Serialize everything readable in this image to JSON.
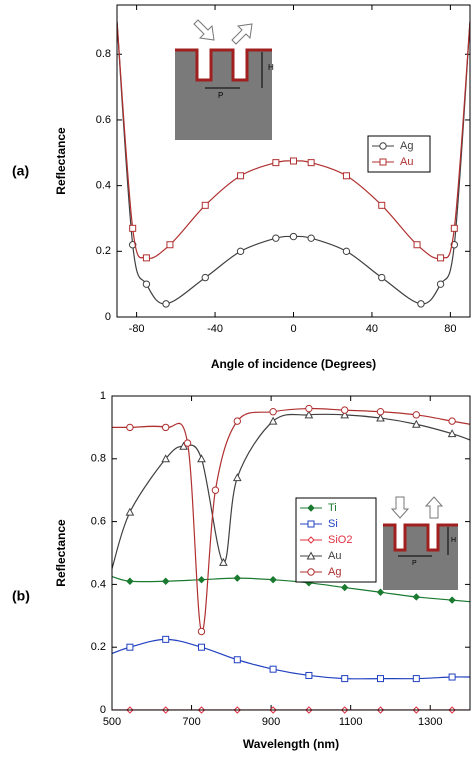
{
  "chart_data": [
    {
      "type": "line",
      "panel_label": "(a)",
      "x_label": "Angle of incidence (Degrees)",
      "y_label": "Reflectance",
      "xlim": [
        -90,
        90
      ],
      "xticks": [
        -80,
        -40,
        0,
        40,
        80
      ],
      "ylim": [
        0,
        0.95
      ],
      "yticks": [
        0,
        0.2,
        0.4,
        0.6,
        0.8
      ],
      "inset_labels": [
        "H",
        "P"
      ],
      "series": [
        {
          "name": "Ag",
          "color": "#404040",
          "marker": "circle",
          "x": [
            -90,
            -82,
            -75,
            -65,
            -45,
            -27,
            -9,
            0,
            9,
            27,
            45,
            65,
            75,
            82,
            90
          ],
          "values": [
            0.9,
            0.22,
            0.1,
            0.04,
            0.12,
            0.2,
            0.24,
            0.245,
            0.24,
            0.2,
            0.12,
            0.04,
            0.1,
            0.22,
            0.9
          ]
        },
        {
          "name": "Au",
          "color": "#b03030",
          "marker": "square",
          "x": [
            -90,
            -82,
            -75,
            -63,
            -45,
            -27,
            -9,
            0,
            9,
            27,
            45,
            63,
            75,
            82,
            90
          ],
          "values": [
            0.9,
            0.27,
            0.18,
            0.22,
            0.34,
            0.43,
            0.47,
            0.475,
            0.47,
            0.43,
            0.34,
            0.22,
            0.18,
            0.27,
            0.9
          ]
        }
      ]
    },
    {
      "type": "line",
      "panel_label": "(b)",
      "x_label": "Wavelength (nm)",
      "y_label": "Reflectance",
      "xlim": [
        500,
        1400
      ],
      "xticks": [
        500,
        700,
        900,
        1100,
        1300
      ],
      "ylim": [
        0,
        1
      ],
      "yticks": [
        0,
        0.2,
        0.4,
        0.6,
        0.8,
        1
      ],
      "inset_labels": [
        "H",
        "P"
      ],
      "series": [
        {
          "name": "Ti",
          "color": "#1a7a30",
          "marker": "diamond",
          "x": [
            500,
            545,
            635,
            725,
            815,
            905,
            995,
            1085,
            1175,
            1265,
            1355,
            1400
          ],
          "values": [
            0.425,
            0.41,
            0.41,
            0.415,
            0.42,
            0.415,
            0.405,
            0.39,
            0.375,
            0.36,
            0.35,
            0.345
          ]
        },
        {
          "name": "Si",
          "color": "#2040c0",
          "marker": "square",
          "x": [
            500,
            545,
            635,
            725,
            815,
            905,
            995,
            1085,
            1175,
            1265,
            1355,
            1400
          ],
          "values": [
            0.18,
            0.2,
            0.225,
            0.2,
            0.16,
            0.13,
            0.11,
            0.1,
            0.1,
            0.1,
            0.105,
            0.105
          ]
        },
        {
          "name": "SiO2",
          "color": "#e03040",
          "marker": "diamond",
          "x": [
            500,
            545,
            635,
            725,
            815,
            905,
            995,
            1085,
            1175,
            1265,
            1355,
            1400
          ],
          "values": [
            0,
            0,
            0,
            0,
            0,
            0,
            0,
            0,
            0,
            0,
            0,
            0
          ]
        },
        {
          "name": "Au",
          "color": "#404040",
          "marker": "triangle",
          "x": [
            500,
            545,
            635,
            680,
            725,
            780,
            815,
            905,
            995,
            1085,
            1175,
            1265,
            1355,
            1400
          ],
          "values": [
            0.45,
            0.63,
            0.8,
            0.84,
            0.8,
            0.47,
            0.74,
            0.92,
            0.94,
            0.94,
            0.93,
            0.91,
            0.88,
            0.86
          ]
        },
        {
          "name": "Ag",
          "color": "#b03030",
          "marker": "circle",
          "x": [
            500,
            545,
            635,
            690,
            725,
            760,
            815,
            905,
            995,
            1085,
            1175,
            1265,
            1355,
            1400
          ],
          "values": [
            0.9,
            0.9,
            0.9,
            0.85,
            0.25,
            0.7,
            0.92,
            0.95,
            0.96,
            0.955,
            0.95,
            0.94,
            0.92,
            0.91
          ]
        }
      ]
    }
  ]
}
